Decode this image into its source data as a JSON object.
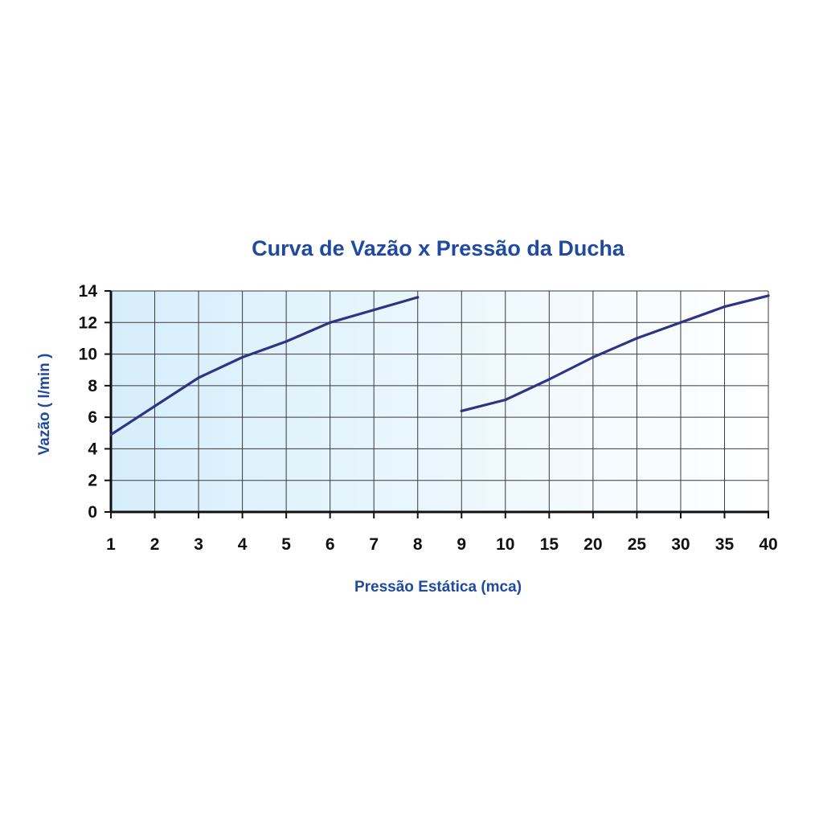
{
  "chart_data": {
    "type": "line",
    "title": "Curva de Vazão x Pressão da Ducha",
    "xlabel": "Pressão Estática (mca)",
    "ylabel": "Vazão ( l/min )",
    "categories": [
      "1",
      "2",
      "3",
      "4",
      "5",
      "6",
      "7",
      "8",
      "9",
      "10",
      "15",
      "20",
      "25",
      "30",
      "35",
      "40"
    ],
    "y_ticks": [
      "0",
      "2",
      "4",
      "6",
      "8",
      "10",
      "12",
      "14"
    ],
    "ylim": [
      0,
      14
    ],
    "grid": true,
    "background": "light-blue-to-white gradient",
    "series": [
      {
        "segments": [
          {
            "x": [
              "1",
              "2",
              "3",
              "4",
              "5",
              "6",
              "7",
              "8"
            ],
            "y": [
              4.9,
              6.7,
              8.5,
              9.8,
              10.8,
              12.0,
              12.8,
              13.6
            ]
          },
          {
            "x": [
              "9",
              "10",
              "15",
              "20",
              "25",
              "30",
              "35",
              "40"
            ],
            "y": [
              6.4,
              7.1,
              8.4,
              9.8,
              11.0,
              12.0,
              13.0,
              13.7
            ]
          }
        ]
      }
    ],
    "colors": {
      "line": "#2f3385",
      "text_blue": "#1f4aa0",
      "grid": "#3a3a3a",
      "gradient_start": "#d6eefb",
      "gradient_end": "#ffffff"
    }
  }
}
